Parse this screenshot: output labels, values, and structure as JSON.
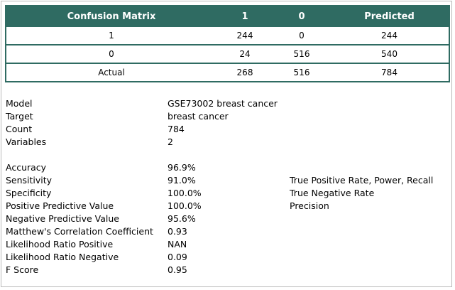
{
  "confusion_matrix": {
    "headers": [
      "Confusion Matrix",
      "1",
      "0",
      "Predicted"
    ],
    "rows": [
      [
        "1",
        "244",
        "0",
        "244"
      ],
      [
        "0",
        "24",
        "516",
        "540"
      ],
      [
        "Actual",
        "268",
        "516",
        "784"
      ]
    ]
  },
  "info": [
    {
      "label": "Model",
      "value": "GSE73002 breast cancer"
    },
    {
      "label": "Target",
      "value": "breast cancer"
    },
    {
      "label": "Count",
      "value": "784"
    },
    {
      "label": "Variables",
      "value": "2"
    }
  ],
  "metrics": [
    {
      "label": "Accuracy",
      "value": "96.9%",
      "desc": ""
    },
    {
      "label": "Sensitivity",
      "value": "91.0%",
      "desc": "True Positive Rate, Power, Recall"
    },
    {
      "label": "Specificity",
      "value": "100.0%",
      "desc": "True Negative Rate"
    },
    {
      "label": "Positive Predictive Value",
      "value": "100.0%",
      "desc": "Precision"
    },
    {
      "label": "Negative Predictive Value",
      "value": "95.6%",
      "desc": ""
    },
    {
      "label": "Matthew's Correlation Coefficient",
      "value": "0.93",
      "desc": ""
    },
    {
      "label": "Likelihood Ratio Positive",
      "value": "NAN",
      "desc": ""
    },
    {
      "label": "Likelihood Ratio Negative",
      "value": "0.09",
      "desc": ""
    },
    {
      "label": "F Score",
      "value": "0.95",
      "desc": ""
    }
  ],
  "colors": {
    "header_bg": "#2f6b62",
    "header_text": "#ffffff"
  }
}
